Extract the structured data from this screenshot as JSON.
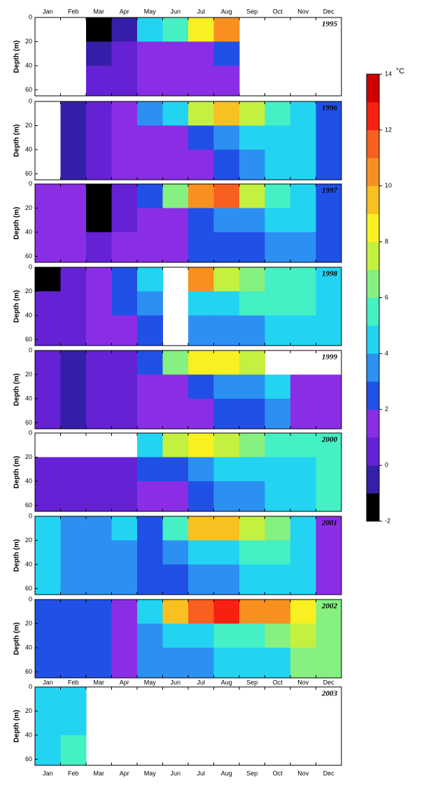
{
  "chart_data": {
    "type": "heatmap",
    "categories": [
      "Jan",
      "Feb",
      "Mar",
      "Apr",
      "May",
      "Jun",
      "Jul",
      "Aug",
      "Sep",
      "Oct",
      "Nov",
      "Dec"
    ],
    "ylabel": "Depth (m)",
    "ylim": [
      0,
      65
    ],
    "yticks": [
      0,
      20,
      40,
      60
    ],
    "depth_bins": [
      0,
      20,
      40,
      65
    ],
    "colorbar": {
      "label": "°C",
      "zlim": [
        -2,
        14
      ],
      "zticks": [
        -2,
        0,
        2,
        4,
        6,
        8,
        10,
        12,
        14
      ],
      "colors": [
        "#000000",
        "#3420a8",
        "#6422d4",
        "#8a2ee6",
        "#2050e6",
        "#2c90f2",
        "#22d4f2",
        "#44f0c4",
        "#86f080",
        "#c4f040",
        "#f8f020",
        "#f8c020",
        "#f89020",
        "#f86020",
        "#f82010",
        "#d00000"
      ]
    },
    "panels": [
      {
        "year": "1995",
        "values": [
          [
            null,
            null,
            -1.5,
            -1,
            4,
            5,
            8,
            10,
            null,
            null,
            null,
            null
          ],
          [
            null,
            null,
            -1,
            0.5,
            1,
            1.5,
            1.5,
            2,
            null,
            null,
            null,
            null
          ],
          [
            null,
            null,
            0.5,
            0.5,
            1,
            1,
            1.5,
            1.5,
            null,
            null,
            null,
            null
          ]
        ]
      },
      {
        "year": "1996",
        "values": [
          [
            null,
            -0.5,
            0.5,
            1,
            3,
            4.5,
            7,
            9,
            7,
            5,
            4,
            2.5
          ],
          [
            null,
            -0.5,
            0.5,
            1,
            1.5,
            1.5,
            2,
            3,
            4,
            4.5,
            4,
            2.5
          ],
          [
            null,
            -0.5,
            0.5,
            1,
            1,
            1.5,
            1.5,
            2,
            3,
            4,
            4,
            2.5
          ]
        ]
      },
      {
        "year": "1997",
        "values": [
          [
            1,
            1,
            -1.5,
            0.5,
            2,
            6,
            10,
            11,
            7,
            5,
            4,
            2.5
          ],
          [
            1,
            1,
            -1.5,
            0.5,
            1,
            1.5,
            2,
            3,
            3.5,
            4,
            4,
            2.5
          ],
          [
            1,
            1,
            0.5,
            1,
            1,
            1.5,
            2,
            2.5,
            2.5,
            3,
            3.5,
            2.5
          ]
        ]
      },
      {
        "year": "1998",
        "values": [
          [
            -1.5,
            0.5,
            1,
            2.5,
            4,
            null,
            10,
            7,
            6,
            5,
            5.5,
            4
          ],
          [
            0.5,
            0.5,
            1,
            2.5,
            3,
            null,
            4,
            4,
            5,
            5,
            5,
            4
          ],
          [
            0.5,
            0.5,
            1,
            1.5,
            2.5,
            null,
            3.5,
            3.5,
            3.5,
            4.5,
            4.5,
            4
          ]
        ]
      },
      {
        "year": "1999",
        "values": [
          [
            0.5,
            -1,
            0,
            0.5,
            2,
            6,
            8,
            8,
            7,
            null,
            null,
            null
          ],
          [
            0,
            -1,
            0,
            0.5,
            1,
            1.5,
            2,
            3,
            3,
            4,
            1.5,
            1.5
          ],
          [
            0,
            -0.5,
            0,
            0.5,
            1,
            1.5,
            1.5,
            2,
            2,
            3,
            1.5,
            1
          ]
        ]
      },
      {
        "year": "2000",
        "values": [
          [
            null,
            null,
            null,
            null,
            4,
            7,
            8,
            7,
            6,
            5,
            5,
            5
          ],
          [
            0,
            0.5,
            0.5,
            0.5,
            2,
            2.5,
            3,
            4,
            4,
            4.5,
            4.5,
            5
          ],
          [
            0.5,
            0.5,
            0.5,
            0.5,
            1,
            1.5,
            2.5,
            3,
            3.5,
            4,
            4,
            5
          ]
        ]
      },
      {
        "year": "2001",
        "values": [
          [
            4.5,
            3.5,
            3.5,
            4,
            2.5,
            5,
            9,
            9,
            7,
            6,
            4.5,
            1.5
          ],
          [
            4.5,
            3.5,
            3.5,
            3,
            2.5,
            3,
            4,
            4,
            5,
            5,
            4.5,
            1.5
          ],
          [
            4.5,
            3.5,
            3,
            3,
            2.5,
            2.5,
            3,
            3.5,
            4,
            4.5,
            4.5,
            1.5
          ]
        ]
      },
      {
        "year": "2002",
        "values": [
          [
            2.5,
            2.5,
            2.5,
            1.5,
            4,
            9,
            11,
            12,
            10,
            10,
            8,
            6
          ],
          [
            2.5,
            2.5,
            2,
            1.5,
            3.5,
            4,
            4,
            5,
            5,
            6,
            7,
            6
          ],
          [
            2.5,
            2.5,
            2,
            1.5,
            3,
            3.5,
            3.5,
            4,
            4,
            4.5,
            6,
            6
          ]
        ]
      },
      {
        "year": "2003",
        "values": [
          [
            4.5,
            4.5,
            null,
            null,
            null,
            null,
            null,
            null,
            null,
            null,
            null,
            null
          ],
          [
            4.5,
            4.5,
            null,
            null,
            null,
            null,
            null,
            null,
            null,
            null,
            null,
            null
          ],
          [
            4.5,
            5,
            null,
            null,
            null,
            null,
            null,
            null,
            null,
            null,
            null,
            null
          ]
        ]
      }
    ]
  }
}
